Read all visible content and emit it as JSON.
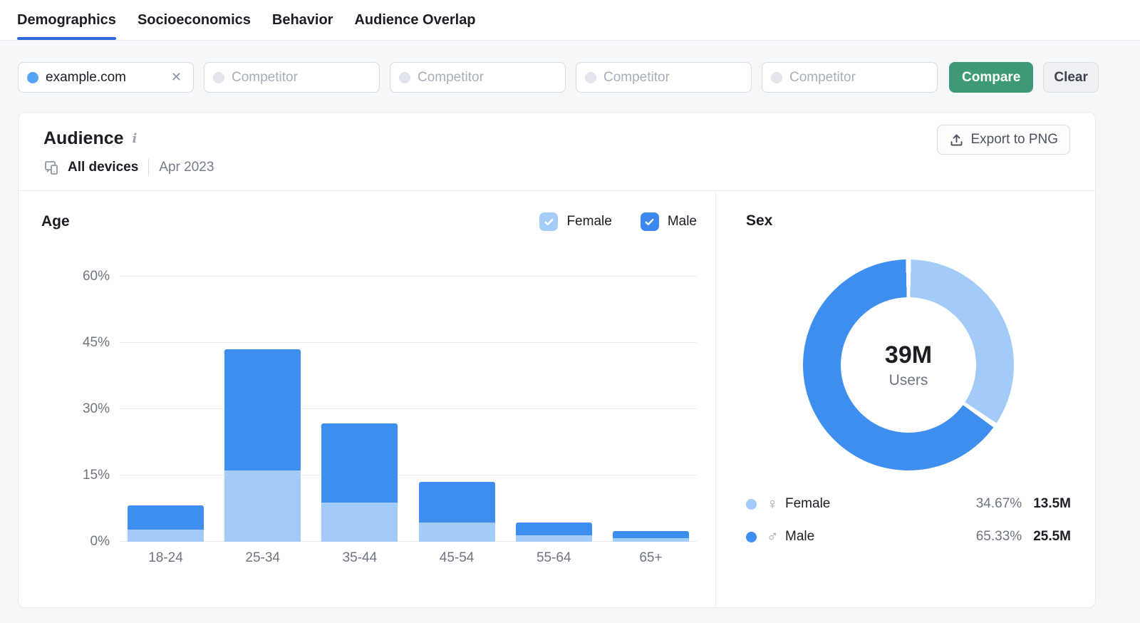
{
  "tabs": [
    {
      "label": "Demographics",
      "active": true
    },
    {
      "label": "Socioeconomics",
      "active": false
    },
    {
      "label": "Behavior",
      "active": false
    },
    {
      "label": "Audience Overlap",
      "active": false
    }
  ],
  "compare_bar": {
    "main_domain": "example.com",
    "competitor_placeholder": "Competitor",
    "compare_label": "Compare",
    "clear_label": "Clear"
  },
  "audience_card": {
    "title": "Audience",
    "devices_label": "All devices",
    "period_label": "Apr 2023",
    "export_label": "Export to PNG"
  },
  "colors": {
    "male_blue": "#3e8ef0",
    "female_blue": "#a2cbf7",
    "tab_accent": "#2b66dd",
    "compare_green": "#3d9a74",
    "domain_dot": "#58a4f4"
  },
  "chart_data": [
    {
      "type": "bar",
      "stacked": true,
      "title": "Age",
      "categories": [
        "18-24",
        "25-34",
        "35-44",
        "45-54",
        "55-64",
        "65+"
      ],
      "series": [
        {
          "name": "Female",
          "color": "#a2cbf7",
          "values": [
            2.7,
            16.2,
            8.8,
            4.4,
            1.5,
            0.8
          ]
        },
        {
          "name": "Male",
          "color": "#3e8ef0",
          "values": [
            5.6,
            27.3,
            18.0,
            9.2,
            2.8,
            1.7
          ]
        }
      ],
      "totals_percent": [
        8.3,
        43.5,
        26.8,
        13.6,
        4.3,
        2.5
      ],
      "ylim": [
        0,
        60
      ],
      "yticks": [
        "0%",
        "15%",
        "30%",
        "45%",
        "60%"
      ],
      "grid": true,
      "legend": [
        {
          "label": "Female",
          "checked": true
        },
        {
          "label": "Male",
          "checked": true
        }
      ],
      "legend_position": "top-right"
    },
    {
      "type": "pie",
      "donut": true,
      "title": "Sex",
      "center_value": "39M",
      "center_label": "Users",
      "slices": [
        {
          "name": "Female",
          "symbol": "♀",
          "percent": 34.67,
          "percent_label": "34.67%",
          "value": "13.5M",
          "color": "#a2cbf7"
        },
        {
          "name": "Male",
          "symbol": "♂",
          "percent": 65.33,
          "percent_label": "65.33%",
          "value": "25.5M",
          "color": "#3e8ef0"
        }
      ],
      "legend_position": "bottom"
    }
  ]
}
